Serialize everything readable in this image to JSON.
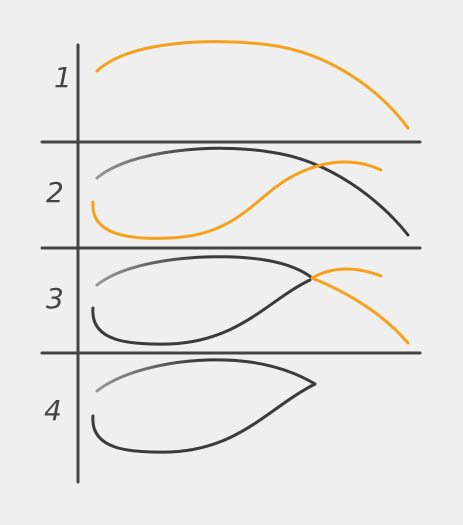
{
  "rows": [
    {
      "label": "1"
    },
    {
      "label": "2"
    },
    {
      "label": "3"
    },
    {
      "label": "4"
    }
  ],
  "colors": {
    "background": "#efefef",
    "grid": "#444444",
    "highlight": "#f5a11c",
    "dark_curve": "#3b3b3b",
    "fade_start": "#9a9a9a"
  }
}
